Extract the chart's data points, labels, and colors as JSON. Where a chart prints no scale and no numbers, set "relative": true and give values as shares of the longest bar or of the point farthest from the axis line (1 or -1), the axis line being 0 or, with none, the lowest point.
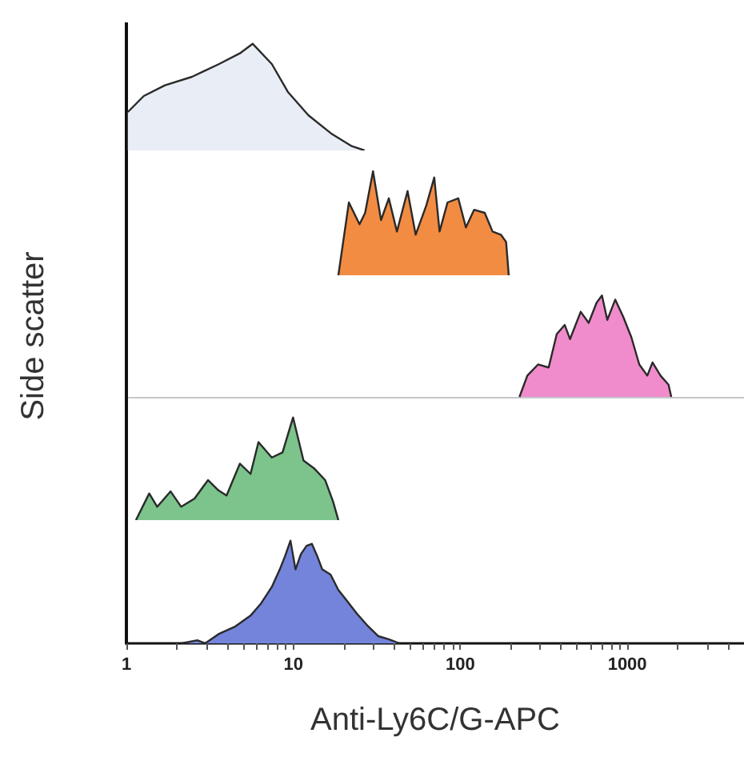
{
  "chart_data": [
    {
      "type": "area",
      "relative": true,
      "log": "x",
      "xlim": [
        1,
        5000
      ],
      "tick_labels": false,
      "color": "#e9edf6",
      "x": [
        1.02,
        1.27,
        1.7,
        2.47,
        3.59,
        4.78,
        5.7,
        7.43,
        9.26,
        12.3,
        16.8,
        22.4,
        26.7
      ],
      "values": [
        0.36,
        0.51,
        0.61,
        0.69,
        0.81,
        0.91,
        1,
        0.81,
        0.55,
        0.33,
        0.16,
        0.04,
        0
      ]
    },
    {
      "type": "area",
      "relative": true,
      "log": "x",
      "xlim": [
        1,
        5000
      ],
      "tick_labels": false,
      "color": "#f28c42",
      "x": [
        18.6,
        21.5,
        24.9,
        26.9,
        30,
        33.5,
        37.3,
        41.7,
        48.3,
        54,
        62.5,
        69.8,
        75.1,
        83.8,
        97.2,
        108,
        121,
        140,
        156,
        175,
        188,
        195
      ],
      "values": [
        0,
        0.7,
        0.49,
        0.6,
        1,
        0.53,
        0.74,
        0.42,
        0.81,
        0.39,
        0.67,
        0.94,
        0.42,
        0.7,
        0.74,
        0.46,
        0.63,
        0.6,
        0.42,
        0.39,
        0.32,
        0
      ]
    },
    {
      "type": "area",
      "relative": true,
      "log": "x",
      "xlim": [
        1,
        5000
      ],
      "tick_labels": false,
      "ylabel": "Side scatter",
      "color": "#f08ccb",
      "x": [
        226,
        252,
        292,
        338,
        378,
        422,
        454,
        526,
        587,
        655,
        705,
        759,
        847,
        946,
        1057,
        1180,
        1318,
        1416,
        1581,
        1766,
        1834
      ],
      "values": [
        0,
        0.21,
        0.32,
        0.29,
        0.62,
        0.71,
        0.57,
        0.84,
        0.73,
        0.93,
        1,
        0.76,
        0.96,
        0.79,
        0.59,
        0.32,
        0.21,
        0.34,
        0.21,
        0.12,
        0
      ]
    },
    {
      "type": "area",
      "relative": true,
      "log": "x",
      "xlim": [
        1,
        5000
      ],
      "tick_labels": false,
      "color": "#7cc38c",
      "x": [
        1.14,
        1.37,
        1.53,
        1.84,
        2.13,
        2.56,
        3.08,
        3.56,
        3.98,
        4.78,
        5.54,
        6.18,
        7.43,
        8.61,
        9.96,
        11.5,
        13.4,
        15.5,
        17.3,
        18.6
      ],
      "values": [
        0,
        0.26,
        0.13,
        0.28,
        0.13,
        0.21,
        0.39,
        0.29,
        0.24,
        0.55,
        0.45,
        0.76,
        0.61,
        0.66,
        1,
        0.58,
        0.5,
        0.39,
        0.18,
        0
      ]
    },
    {
      "type": "area",
      "relative": true,
      "log": "x",
      "xlim": [
        1,
        5000
      ],
      "tick_labels": "x",
      "xlabel": "Anti-Ly6C/G-APC",
      "color": "#7384da",
      "xticks": [
        1,
        {
          "value": 2,
          "label": null
        },
        {
          "value": 3,
          "label": null
        },
        {
          "value": 4,
          "label": null
        },
        {
          "value": 5,
          "label": null
        },
        {
          "value": 6,
          "label": null
        },
        {
          "value": 7,
          "label": null
        },
        {
          "value": 8,
          "label": null
        },
        {
          "value": 9,
          "label": null
        },
        10,
        {
          "value": 20,
          "label": null
        },
        {
          "value": 30,
          "label": null
        },
        {
          "value": 40,
          "label": null
        },
        {
          "value": 50,
          "label": null
        },
        {
          "value": 60,
          "label": null
        },
        {
          "value": 70,
          "label": null
        },
        {
          "value": 80,
          "label": null
        },
        {
          "value": 90,
          "label": null
        },
        100,
        {
          "value": 200,
          "label": null
        },
        {
          "value": 300,
          "label": null
        },
        {
          "value": 400,
          "label": null
        },
        {
          "value": 500,
          "label": null
        },
        {
          "value": 600,
          "label": null
        },
        {
          "value": 700,
          "label": null
        },
        {
          "value": 800,
          "label": null
        },
        {
          "value": 900,
          "label": null
        },
        1000,
        {
          "value": 2000,
          "label": null
        },
        {
          "value": 3000,
          "label": null
        },
        {
          "value": 4000,
          "label": null
        },
        {
          "value": 5000,
          "label": null
        }
      ],
      "x": [
        2.13,
        2.66,
        2.96,
        3.56,
        4.44,
        5.54,
        6.41,
        7.43,
        8.29,
        8.92,
        9.61,
        10.3,
        11.1,
        12,
        12.9,
        13.9,
        14.9,
        16.7,
        18.6,
        20.8,
        24,
        27.9,
        32.3,
        37.3,
        43.3
      ],
      "values": [
        0,
        0.03,
        0,
        0.09,
        0.16,
        0.27,
        0.39,
        0.55,
        0.72,
        0.85,
        1,
        0.72,
        0.87,
        0.95,
        0.97,
        0.85,
        0.72,
        0.67,
        0.52,
        0.42,
        0.29,
        0.17,
        0.07,
        0.04,
        0
      ]
    }
  ]
}
